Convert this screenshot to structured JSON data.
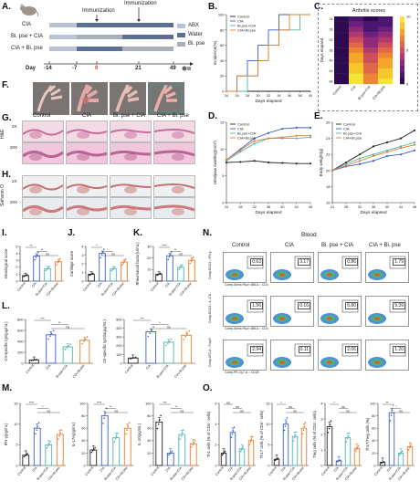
{
  "panels": {
    "A": "A.",
    "B": "B.",
    "C": "C.",
    "D": "D.",
    "E": "E.",
    "F": "F.",
    "G": "G.",
    "H": "H.",
    "I": "I.",
    "J": "J.",
    "K": "K.",
    "L": "L.",
    "M": "M.",
    "N": "N.",
    "O": "O."
  },
  "schema": {
    "group_cia": "CIA",
    "group_bipse_cia": "Bi. pse + CIA",
    "group_cia_bipse": "CIA + Bi. pse",
    "immunization_1": "Immunization",
    "immunization_2": "Immunization",
    "legend_abx": "ABX",
    "legend_water": "Water",
    "legend_bipse": "Bi. pse",
    "day_label": "Day",
    "days": [
      "-14",
      "-7",
      "0",
      "21",
      "49"
    ],
    "color_abx": "#b9c3d6",
    "color_water": "#5b6e95",
    "color_bipse": "#a9b0b8"
  },
  "groups4": [
    "Control",
    "CIA",
    "Bi. pse + CIA",
    "CIA + Bi. pse"
  ],
  "bar_groups": [
    "Control",
    "CIA",
    "Bi.pse+CIA",
    "CIA+Bi.pse"
  ],
  "bar_colors": [
    "#222222",
    "#3a5fd0",
    "#4fb7b0",
    "#e67d2c"
  ],
  "histo": {
    "row_g_mag1": "2X",
    "row_g_mag2": "20X",
    "row_g_label": "H&E",
    "row_h_mag1": "2X",
    "row_h_mag2": "20X",
    "row_h_label": "Safranin O"
  },
  "blood_label": "Blood",
  "flow": {
    "rows": [
      {
        "values": [
          "0.63",
          "3.17",
          "0.86",
          "1.79"
        ],
        "y_axis": "Comp-BV421 :: IFN-γ",
        "x_axis": "Comp-Alexa Fluor 488-A :: CD4"
      },
      {
        "values": [
          "1.56",
          "0.16",
          "6.80",
          "9.39"
        ],
        "y_axis": "Comp-BV421 :: IL-17A",
        "x_axis": "Comp-Alexa Fluor 488-A :: CD4"
      },
      {
        "values": [
          "2.94",
          "0.11",
          "2.06",
          "1.20"
        ],
        "y_axis": "Comp-APC-A :: Foxp3",
        "x_axis": "Comp-PE-Cy7-A :: CD25"
      }
    ]
  },
  "chart_data": [
    {
      "id": "B",
      "type": "line",
      "ylabel": "Incidence(%)",
      "xlabel": "Days elapsed",
      "x": [
        24,
        26,
        28,
        30,
        32,
        34,
        36,
        38,
        40
      ],
      "ylim": [
        0,
        100
      ],
      "yticks": [
        "0",
        "20",
        "40",
        "60",
        "80",
        "100"
      ],
      "xticks": [
        "24",
        "26",
        "28",
        "30",
        "32",
        "34",
        "36",
        "38",
        "40"
      ],
      "series": [
        {
          "name": "Control",
          "color": "#222222",
          "values": [
            0,
            0,
            0,
            0,
            0,
            0,
            0,
            0,
            0
          ]
        },
        {
          "name": "CIA",
          "color": "#3a5fd0",
          "values": [
            0,
            20,
            40,
            60,
            80,
            100,
            100,
            100,
            100
          ]
        },
        {
          "name": "Bi.pse+CIA",
          "color": "#4fb7b0",
          "values": [
            0,
            0,
            20,
            40,
            60,
            80,
            80,
            100,
            100
          ]
        },
        {
          "name": "CIA+Bi.pse",
          "color": "#e67d2c",
          "values": [
            0,
            20,
            20,
            40,
            60,
            80,
            100,
            100,
            100
          ]
        }
      ]
    },
    {
      "id": "C",
      "type": "heatmap",
      "title": "Arthritis scores",
      "ylabel": "Days elapsed",
      "columns": [
        "Control",
        "CIA",
        "Bi.pse+CIA",
        "CIA+Bi.pse"
      ],
      "rows": [
        "24",
        "26",
        "28",
        "30",
        "32",
        "34",
        "36",
        "38",
        "40",
        "42",
        "44",
        "46",
        "48"
      ],
      "values": [
        [
          0,
          1,
          0,
          1
        ],
        [
          0,
          2,
          1,
          1
        ],
        [
          0,
          3,
          1,
          2
        ],
        [
          0,
          4,
          2,
          3
        ],
        [
          0,
          5,
          3,
          4
        ],
        [
          0,
          6,
          3,
          5
        ],
        [
          0,
          7,
          4,
          6
        ],
        [
          0,
          8,
          5,
          7
        ],
        [
          0,
          8,
          5,
          8
        ],
        [
          0,
          9,
          6,
          8
        ],
        [
          0,
          9,
          6,
          9
        ],
        [
          0,
          10,
          7,
          9
        ],
        [
          0,
          10,
          7,
          10
        ]
      ],
      "scale_ticks": [
        "0",
        "5",
        "10"
      ]
    },
    {
      "id": "D",
      "type": "line",
      "ylabel": "Hindpaw swelling(mm²)",
      "xlabel": "Days elapsed",
      "x": [
        24,
        28,
        32,
        36,
        40,
        44,
        48
      ],
      "ylim": [
        0,
        15
      ],
      "yticks": [
        "0",
        "5",
        "10",
        "15"
      ],
      "xticks": [
        "24",
        "28",
        "32",
        "36",
        "40",
        "44",
        "48"
      ],
      "series": [
        {
          "name": "Control",
          "color": "#222222",
          "values": [
            7.5,
            7.6,
            7.8,
            7.5,
            7.4,
            7.3,
            7.3
          ]
        },
        {
          "name": "CIA",
          "color": "#3a5fd0",
          "values": [
            8,
            10,
            12,
            13,
            13.8,
            14,
            14
          ]
        },
        {
          "name": "Bi.pse+CIA",
          "color": "#4fb7b0",
          "values": [
            7.8,
            9.5,
            11,
            12,
            12,
            12,
            12.2
          ]
        },
        {
          "name": "CIA+Bi.pse",
          "color": "#e67d2c",
          "values": [
            8,
            9.8,
            11.5,
            12,
            12.2,
            12.5,
            12.5
          ]
        }
      ]
    },
    {
      "id": "E",
      "type": "line",
      "ylabel": "Body weight(g)",
      "xlabel": "Days elapsed",
      "x": [
        24,
        28,
        32,
        36,
        40,
        44,
        48
      ],
      "ylim": [
        16,
        26
      ],
      "yticks": [
        "16",
        "18",
        "20",
        "22",
        "24",
        "26"
      ],
      "xticks": [
        "24",
        "28",
        "32",
        "36",
        "40",
        "44",
        "48"
      ],
      "series": [
        {
          "name": "Control",
          "color": "#222222",
          "values": [
            20,
            21,
            22,
            23,
            23.5,
            24,
            25
          ]
        },
        {
          "name": "CIA",
          "color": "#3a5fd0",
          "values": [
            20,
            20.5,
            20.8,
            21.2,
            21.8,
            22,
            22.5
          ]
        },
        {
          "name": "Bi.pse+CIA",
          "color": "#4fb7b0",
          "values": [
            20,
            20.8,
            21.5,
            22,
            22.5,
            23,
            23.5
          ]
        },
        {
          "name": "CIA+Bi.pse",
          "color": "#e67d2c",
          "values": [
            20,
            20.6,
            21.2,
            21.8,
            22.3,
            22.8,
            23.2
          ]
        }
      ]
    },
    {
      "id": "I",
      "type": "bar",
      "ylabel": "Histological score",
      "ylim": [
        0,
        5
      ],
      "yticks": [
        "0",
        "1",
        "2",
        "3",
        "4",
        "5"
      ],
      "values": [
        0.8,
        3.6,
        1.8,
        2.8
      ],
      "sig": [
        "**",
        "**",
        "ns"
      ]
    },
    {
      "id": "J",
      "type": "bar",
      "ylabel": "Cartilage score",
      "ylim": [
        0,
        4
      ],
      "yticks": [
        "0",
        "1",
        "2",
        "3",
        "4"
      ],
      "values": [
        0.8,
        3.2,
        1.4,
        2.2
      ],
      "sig": [
        "*",
        "*",
        "ns"
      ]
    },
    {
      "id": "K",
      "type": "bar",
      "ylabel": "Rheumatoid factor(U/mL)",
      "ylim": [
        0,
        30
      ],
      "yticks": [
        "0",
        "10",
        "20",
        "30"
      ],
      "values": [
        6,
        22,
        12,
        18
      ],
      "sig": [
        "****",
        "**",
        "ns"
      ]
    },
    {
      "id": "L1",
      "type": "bar",
      "ylabel": "CII-specific IgG(μg/mL)",
      "ylim": [
        0,
        800
      ],
      "yticks": [
        "0",
        "200",
        "400",
        "600",
        "800"
      ],
      "values": [
        60,
        520,
        300,
        420
      ],
      "sig": [
        "***",
        "**",
        "ns"
      ]
    },
    {
      "id": "L2",
      "type": "bar",
      "ylabel": "CII-specific IgG2a(μg/mL)",
      "ylim": [
        0,
        500
      ],
      "yticks": [
        "0",
        "100",
        "200",
        "300",
        "400",
        "500"
      ],
      "values": [
        60,
        360,
        240,
        320
      ],
      "sig": [
        "***",
        "*",
        "ns"
      ]
    },
    {
      "id": "M1",
      "type": "bar",
      "ylabel": "IFN-γ(pg/mL)",
      "ylim": [
        0,
        15
      ],
      "yticks": [
        "0",
        "5",
        "10",
        "15"
      ],
      "values": [
        2.5,
        9,
        5,
        7.5
      ],
      "sig": [
        "****",
        "*",
        "ns"
      ]
    },
    {
      "id": "M2",
      "type": "bar",
      "ylabel": "IL-17A(pg/mL)",
      "ylim": [
        0,
        100
      ],
      "yticks": [
        "0",
        "20",
        "40",
        "60",
        "80",
        "100"
      ],
      "values": [
        25,
        80,
        45,
        60
      ],
      "sig": [
        "****",
        "**",
        "ns"
      ]
    },
    {
      "id": "M3",
      "type": "bar",
      "ylabel": "IL-10(pg/mL)",
      "ylim": [
        0,
        100
      ],
      "yticks": [
        "0",
        "20",
        "40",
        "60",
        "80",
        "100"
      ],
      "values": [
        70,
        20,
        50,
        35
      ],
      "sig": [
        "***",
        "**",
        "ns"
      ]
    },
    {
      "id": "O1",
      "type": "bar",
      "ylabel": "Th1 cells (% of CD4⁺ cells)",
      "ylim": [
        0,
        6
      ],
      "yticks": [
        "0",
        "2",
        "4",
        "6"
      ],
      "values": [
        1.2,
        3.2,
        1.6,
        2.4
      ],
      "sig": [
        "ns",
        "ns",
        "ns"
      ]
    },
    {
      "id": "O2",
      "type": "bar",
      "ylabel": "Th17 cells (% of CD4⁺ cells)",
      "ylim": [
        0,
        15
      ],
      "yticks": [
        "0",
        "5",
        "10",
        "15"
      ],
      "values": [
        1.5,
        10,
        7,
        9
      ],
      "sig": [
        "*",
        "ns",
        "ns"
      ]
    },
    {
      "id": "O3",
      "type": "bar",
      "ylabel": "Treg cells (% of CD4⁺ cells)",
      "ylim": [
        0,
        4
      ],
      "yticks": [
        "0",
        "1",
        "2",
        "3",
        "4"
      ],
      "values": [
        2.5,
        0.3,
        1.8,
        1.1
      ],
      "sig": [
        "*",
        "ns",
        "ns"
      ]
    },
    {
      "id": "O4",
      "type": "bar",
      "ylabel": "Th17/Treg cells (%)",
      "ylim": [
        0,
        100
      ],
      "yticks": [
        "0",
        "20",
        "40",
        "60",
        "80",
        "100"
      ],
      "values": [
        5,
        85,
        20,
        30
      ],
      "sig": [
        "**",
        "*",
        "ns"
      ]
    }
  ]
}
